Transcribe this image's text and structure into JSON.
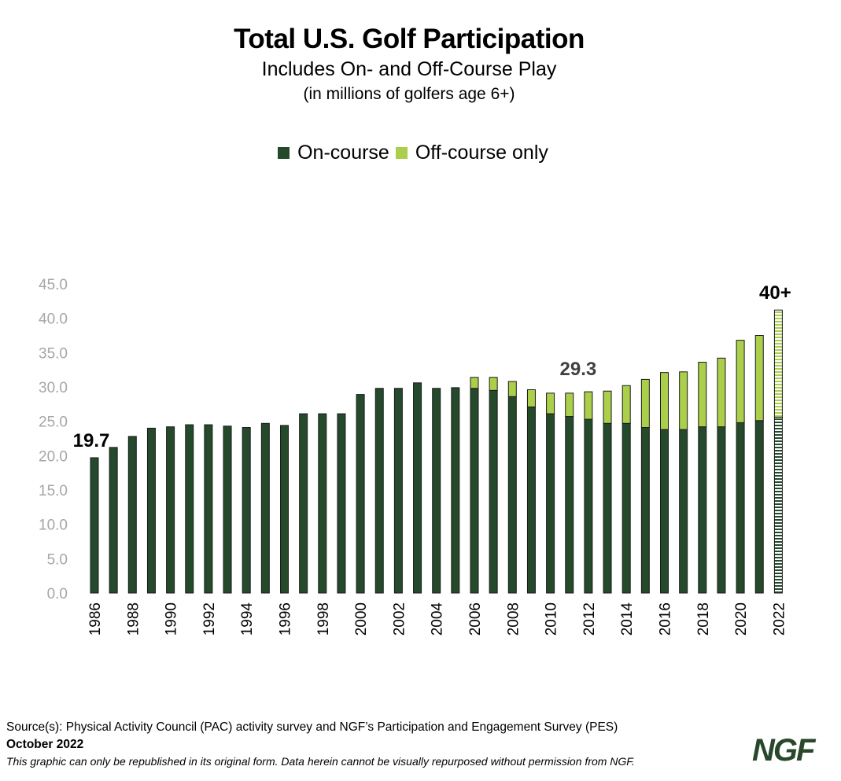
{
  "title": "Total U.S. Golf Participation",
  "subtitle": "Includes On- and Off-Course Play",
  "note": "(in millions of golfers age 6+)",
  "legend": [
    {
      "label": "On-course",
      "color": "#254a2b"
    },
    {
      "label": "Off-course only",
      "color": "#abcf4a"
    }
  ],
  "chart_data": {
    "type": "bar",
    "stacked": true,
    "categories": [
      "1986",
      "1987",
      "1988",
      "1989",
      "1990",
      "1991",
      "1992",
      "1993",
      "1994",
      "1995",
      "1996",
      "1997",
      "1998",
      "1999",
      "2000",
      "2001",
      "2002",
      "2003",
      "2004",
      "2005",
      "2006",
      "2007",
      "2008",
      "2009",
      "2010",
      "2011",
      "2012",
      "2013",
      "2014",
      "2015",
      "2016",
      "2017",
      "2018",
      "2019",
      "2020",
      "2021",
      "2022"
    ],
    "tick_labels": [
      "1986",
      "1988",
      "1990",
      "1992",
      "1994",
      "1996",
      "1998",
      "2000",
      "2002",
      "2004",
      "2006",
      "2008",
      "2010",
      "2012",
      "2014",
      "2016",
      "2018",
      "2020",
      "2022"
    ],
    "series": [
      {
        "name": "On-course",
        "color": "#254a2b",
        "values": [
          19.7,
          21.2,
          22.8,
          24.0,
          24.2,
          24.5,
          24.5,
          24.3,
          24.1,
          24.7,
          24.4,
          26.1,
          26.1,
          26.1,
          28.9,
          29.8,
          29.8,
          30.6,
          29.8,
          29.9,
          29.8,
          29.5,
          28.6,
          27.1,
          26.1,
          25.7,
          25.3,
          24.7,
          24.7,
          24.1,
          23.8,
          23.8,
          24.2,
          24.2,
          24.8,
          25.1,
          25.6
        ]
      },
      {
        "name": "Off-course only",
        "color": "#abcf4a",
        "values": [
          0,
          0,
          0,
          0,
          0,
          0,
          0,
          0,
          0,
          0,
          0,
          0,
          0,
          0,
          0,
          0,
          0,
          0,
          0,
          0,
          1.6,
          1.9,
          2.2,
          2.5,
          3.0,
          3.4,
          4.0,
          4.7,
          5.5,
          7.0,
          8.3,
          8.4,
          9.4,
          10.0,
          12.0,
          12.4,
          15.6
        ]
      }
    ],
    "projected_category": "2022",
    "annotations": [
      {
        "text": "19.7",
        "category": "1986"
      },
      {
        "text": "29.3",
        "category": "2012"
      },
      {
        "text": "40+",
        "category": "2022"
      }
    ],
    "y_ticks": [
      "0.0",
      "5.0",
      "10.0",
      "15.0",
      "20.0",
      "25.0",
      "30.0",
      "35.0",
      "40.0",
      "45.0"
    ],
    "ylim": [
      0,
      45
    ],
    "grid": false
  },
  "footer": {
    "source": "Source(s): Physical Activity Council (PAC) activity survey and NGF’s Participation and Engagement Survey (PES)",
    "date": "October 2022",
    "disclaimer": "This graphic can only be republished in its original form. Data herein cannot be visually repurposed without permission from NGF."
  },
  "logo": "NGF"
}
